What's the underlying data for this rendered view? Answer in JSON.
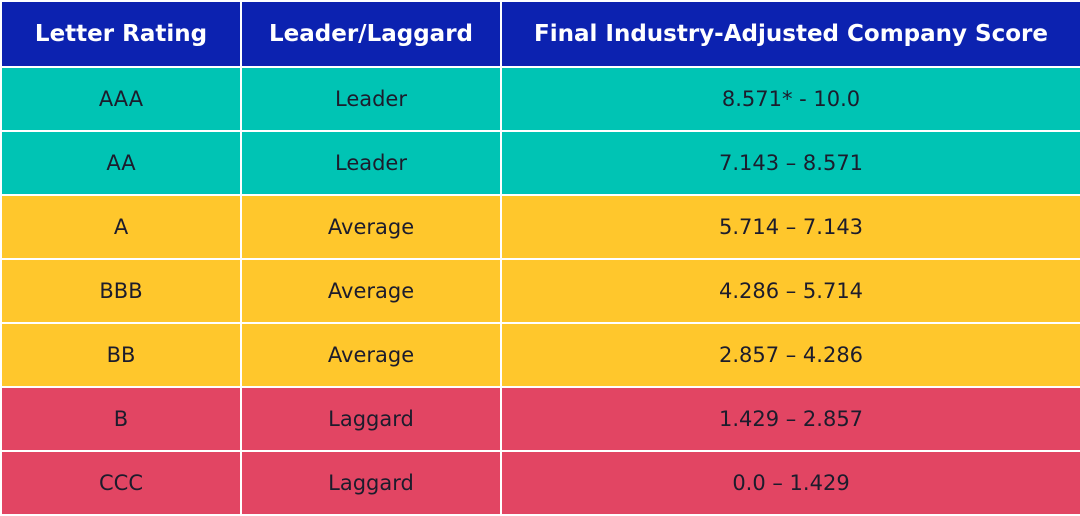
{
  "table": {
    "header": [
      "Letter Rating",
      "Leader/Laggard",
      "Final Industry-Adjusted Company Score"
    ],
    "rows": [
      [
        "AAA",
        "Leader",
        "8.571* - 10.0"
      ],
      [
        "AA",
        "Leader",
        "7.143 – 8.571"
      ],
      [
        "A",
        "Average",
        "5.714 – 7.143"
      ],
      [
        "BBB",
        "Average",
        "4.286 – 5.714"
      ],
      [
        "BB",
        "Average",
        "2.857 – 4.286"
      ],
      [
        "B",
        "Laggard",
        "1.429 – 2.857"
      ],
      [
        "CCC",
        "Laggard",
        "0.0 – 1.429"
      ]
    ]
  }
}
